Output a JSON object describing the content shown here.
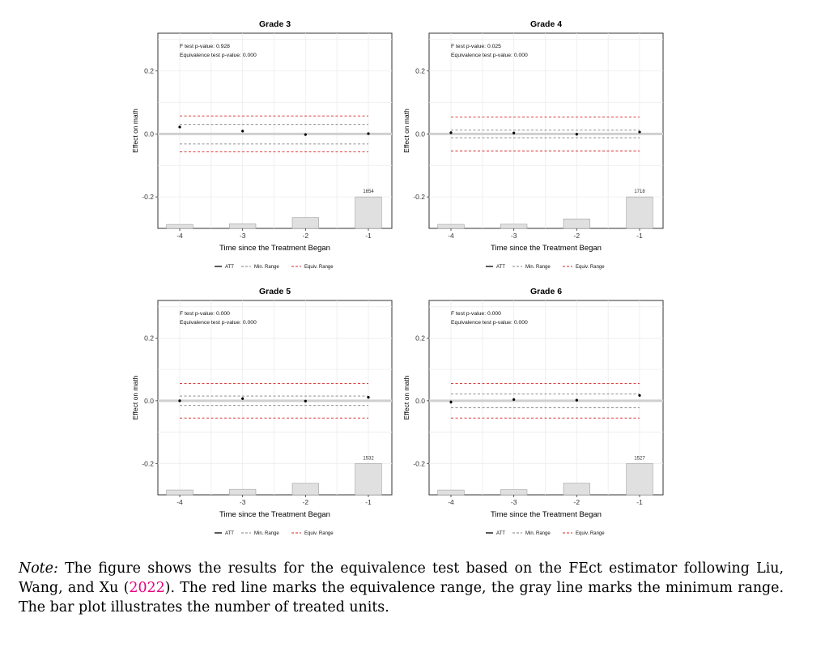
{
  "chart_data": [
    {
      "type": "bar+errorbar",
      "title": "Grade 3",
      "xlabel": "Time since the Treatment Began",
      "ylabel": "Effect on math",
      "x_ticks": [
        -4,
        -3,
        -2,
        -1
      ],
      "x_tick_labels": [
        "-4",
        "-3",
        "-2",
        "-1"
      ],
      "y_ticks": [
        -0.2,
        0.0,
        0.2
      ],
      "y_tick_labels": [
        "-0.2",
        "0.0",
        "0.2"
      ],
      "ylim": [
        -0.3,
        0.32
      ],
      "annotations": [
        "F test p-value: 0.928",
        "Equivalence test p-value: 0.000"
      ],
      "series": [
        {
          "name": "ATT",
          "x": [
            -4,
            -3,
            -2,
            -1
          ],
          "y": [
            0.022,
            0.009,
            -0.002,
            0.001
          ],
          "ci_low": [
            0.018,
            0.005,
            -0.005,
            -0.001
          ],
          "ci_high": [
            0.026,
            0.013,
            0.001,
            0.003
          ]
        }
      ],
      "min_range": [
        -0.032,
        0.03
      ],
      "equiv_range": [
        -0.057,
        0.057
      ],
      "bars": {
        "x": [
          -4,
          -3,
          -2,
          -1
        ],
        "values": [
          208,
          245,
          567,
          1654
        ],
        "bar_base": -0.3,
        "bar_top_max": -0.2
      },
      "bar_label": "1654",
      "legend": [
        "ATT",
        "Min. Range",
        "Equiv. Range"
      ],
      "legend_position": "bottom"
    },
    {
      "type": "bar+errorbar",
      "title": "Grade 4",
      "xlabel": "Time since the Treatment Began",
      "ylabel": "Effect on math",
      "x_ticks": [
        -4,
        -3,
        -2,
        -1
      ],
      "x_tick_labels": [
        "-4",
        "-3",
        "-2",
        "-1"
      ],
      "y_ticks": [
        -0.2,
        0.0,
        0.2
      ],
      "y_tick_labels": [
        "-0.2",
        "0.0",
        "0.2"
      ],
      "ylim": [
        -0.3,
        0.32
      ],
      "annotations": [
        "F test p-value: 0.025",
        "Equivalence test p-value: 0.000"
      ],
      "series": [
        {
          "name": "ATT",
          "x": [
            -4,
            -3,
            -2,
            -1
          ],
          "y": [
            0.004,
            0.003,
            -0.001,
            0.006
          ],
          "ci_low": [
            0.0,
            -0.001,
            -0.005,
            0.004
          ],
          "ci_high": [
            0.008,
            0.007,
            0.003,
            0.008
          ]
        }
      ],
      "min_range": [
        -0.012,
        0.012
      ],
      "equiv_range": [
        -0.054,
        0.054
      ],
      "bars": {
        "x": [
          -4,
          -3,
          -2,
          -1
        ],
        "values": [
          219,
          229,
          515,
          1718
        ],
        "bar_base": -0.3,
        "bar_top_max": -0.2
      },
      "bar_label": "1718",
      "legend": [
        "ATT",
        "Min. Range",
        "Equiv. Range"
      ],
      "legend_position": "bottom"
    },
    {
      "type": "bar+errorbar",
      "title": "Grade 5",
      "xlabel": "Time since the Treatment Began",
      "ylabel": "Effect on math",
      "x_ticks": [
        -4,
        -3,
        -2,
        -1
      ],
      "x_tick_labels": [
        "-4",
        "-3",
        "-2",
        "-1"
      ],
      "y_ticks": [
        -0.2,
        0.0,
        0.2
      ],
      "y_tick_labels": [
        "-0.2",
        "0.0",
        "0.2"
      ],
      "ylim": [
        -0.3,
        0.32
      ],
      "annotations": [
        "F test p-value: 0.000",
        "Equivalence test p-value: 0.000"
      ],
      "series": [
        {
          "name": "ATT",
          "x": [
            -4,
            -3,
            -2,
            -1
          ],
          "y": [
            0.0,
            0.007,
            -0.001,
            0.011
          ],
          "ci_low": [
            -0.004,
            0.003,
            -0.004,
            0.009
          ],
          "ci_high": [
            0.004,
            0.011,
            0.002,
            0.013
          ]
        }
      ],
      "min_range": [
        -0.015,
        0.015
      ],
      "equiv_range": [
        -0.055,
        0.055
      ],
      "bars": {
        "x": [
          -4,
          -3,
          -2,
          -1
        ],
        "values": [
          235,
          270,
          563,
          1532
        ],
        "bar_base": -0.3,
        "bar_top_max": -0.2
      },
      "bar_label": "1532",
      "legend": [
        "ATT",
        "Min. Range",
        "Equiv. Range"
      ],
      "legend_position": "bottom"
    },
    {
      "type": "bar+errorbar",
      "title": "Grade 6",
      "xlabel": "Time since the Treatment Began",
      "ylabel": "Effect on math",
      "x_ticks": [
        -4,
        -3,
        -2,
        -1
      ],
      "x_tick_labels": [
        "-4",
        "-3",
        "-2",
        "-1"
      ],
      "y_ticks": [
        -0.2,
        0.0,
        0.2
      ],
      "y_tick_labels": [
        "-0.2",
        "0.0",
        "0.2"
      ],
      "ylim": [
        -0.3,
        0.32
      ],
      "annotations": [
        "F test p-value: 0.000",
        "Equivalence test p-value: 0.000"
      ],
      "series": [
        {
          "name": "ATT",
          "x": [
            -4,
            -3,
            -2,
            -1
          ],
          "y": [
            -0.004,
            0.004,
            0.002,
            0.017
          ],
          "ci_low": [
            -0.009,
            0.0,
            -0.001,
            0.015
          ],
          "ci_high": [
            0.001,
            0.008,
            0.005,
            0.019
          ]
        }
      ],
      "min_range": [
        -0.022,
        0.022
      ],
      "equiv_range": [
        -0.055,
        0.055
      ],
      "bars": {
        "x": [
          -4,
          -3,
          -2,
          -1
        ],
        "values": [
          233,
          252,
          567,
          1527
        ],
        "bar_base": -0.3,
        "bar_top_max": -0.2
      },
      "bar_label": "1527",
      "legend": [
        "ATT",
        "Min. Range",
        "Equiv. Range"
      ],
      "legend_position": "bottom"
    }
  ],
  "colors": {
    "equiv_range": "#d62728",
    "min_range": "#808080",
    "bars": "#e0e0e0",
    "bar_border": "#a0a0a0",
    "zero_line": "#cfcfcf",
    "grid": "#ececec",
    "panel_border": "#333333"
  },
  "caption": {
    "note_label": "Note:",
    "text_part1": " The figure shows the results for the equivalence test based on the FEct estimator following Liu, Wang, and Xu (",
    "cite_year": "2022",
    "text_part2": "). The red line marks the equivalence range, the gray line marks the minimum range. The bar plot illustrates the number of treated units."
  }
}
